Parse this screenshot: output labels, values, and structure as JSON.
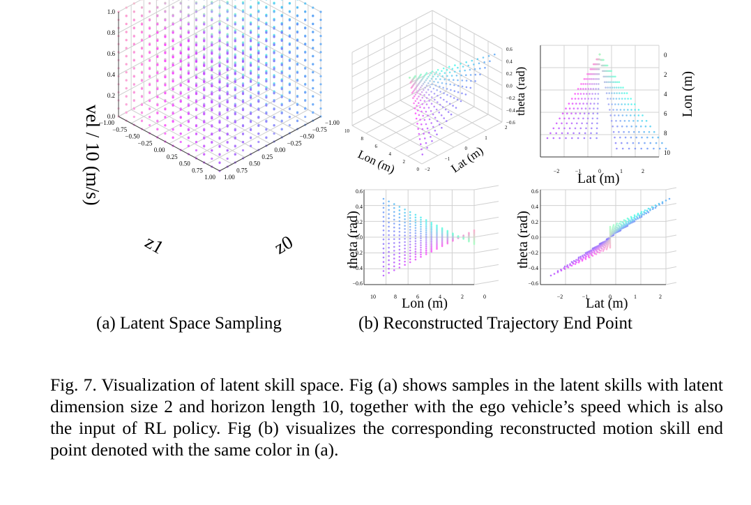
{
  "figure": {
    "panel_a": {
      "subcaption": "(a) Latent Space Sampling",
      "zlabel": "vel / 10 (m/s)",
      "xlabel": "z1",
      "ylabel": "z0",
      "zticks": [
        "0.0",
        "0.2",
        "0.4",
        "0.6",
        "0.8",
        "1.0"
      ],
      "xticks": [
        "−1.00",
        "−0.75",
        "−0.50",
        "−0.25",
        "0.00",
        "0.25",
        "0.50",
        "0.75",
        "1.00"
      ],
      "yticks": [
        "−1.00",
        "−0.75",
        "−0.50",
        "−0.25",
        "0.00",
        "0.25",
        "0.50",
        "0.75",
        "1.00"
      ]
    },
    "panel_b": {
      "subcaption": "(b) Reconstructed Trajectory End Point",
      "views": {
        "iso": {
          "xlabel": "Lon (m)",
          "ylabel": "Lat (m)",
          "zlabel": "theta (rad)",
          "xticks": [
            "0",
            "2",
            "4",
            "6",
            "8",
            "10"
          ],
          "yticks": [
            "2",
            "1",
            "0",
            "−1",
            "−2"
          ],
          "zticks": [
            "0.6",
            "0.4",
            "0.2",
            "0.0",
            "−0.2",
            "−0.4",
            "−0.6"
          ]
        },
        "top": {
          "xlabel": "Lat (m)",
          "ylabel": "Lon (m)",
          "xticks": [
            "−2",
            "−1",
            "0",
            "1",
            "2"
          ],
          "yticks": [
            "0",
            "2",
            "4",
            "6",
            "8",
            "10"
          ]
        },
        "side_lon": {
          "xlabel": "Lon (m)",
          "ylabel": "theta (rad)",
          "xticks": [
            "10",
            "8",
            "6",
            "4",
            "2",
            "0"
          ],
          "yticks": [
            "0.6",
            "0.4",
            "0.2",
            "0.0",
            "−0.2",
            "−0.4",
            "−0.6"
          ]
        },
        "side_lat": {
          "xlabel": "Lat (m)",
          "ylabel": "theta (rad)",
          "xticks": [
            "−2",
            "−1",
            "0",
            "1",
            "2"
          ],
          "yticks": [
            "0.6",
            "0.4",
            "0.2",
            "0.0",
            "−0.2",
            "−0.4",
            "−0.6"
          ]
        }
      }
    }
  },
  "caption": "Fig. 7.  Visualization of latent skill space. Fig (a) shows samples in the latent skills with latent dimension size 2 and horizon length 10, together with the ego vehicle’s speed which is also the input of RL policy. Fig (b) visualizes the corresponding reconstructed motion skill end point denoted with the same color in (a).",
  "colors": {
    "magenta": "#ff33ff",
    "cyan": "#33ffee",
    "blue": "#6655ff",
    "green": "#66ff99",
    "yellow": "#ffff99"
  }
}
